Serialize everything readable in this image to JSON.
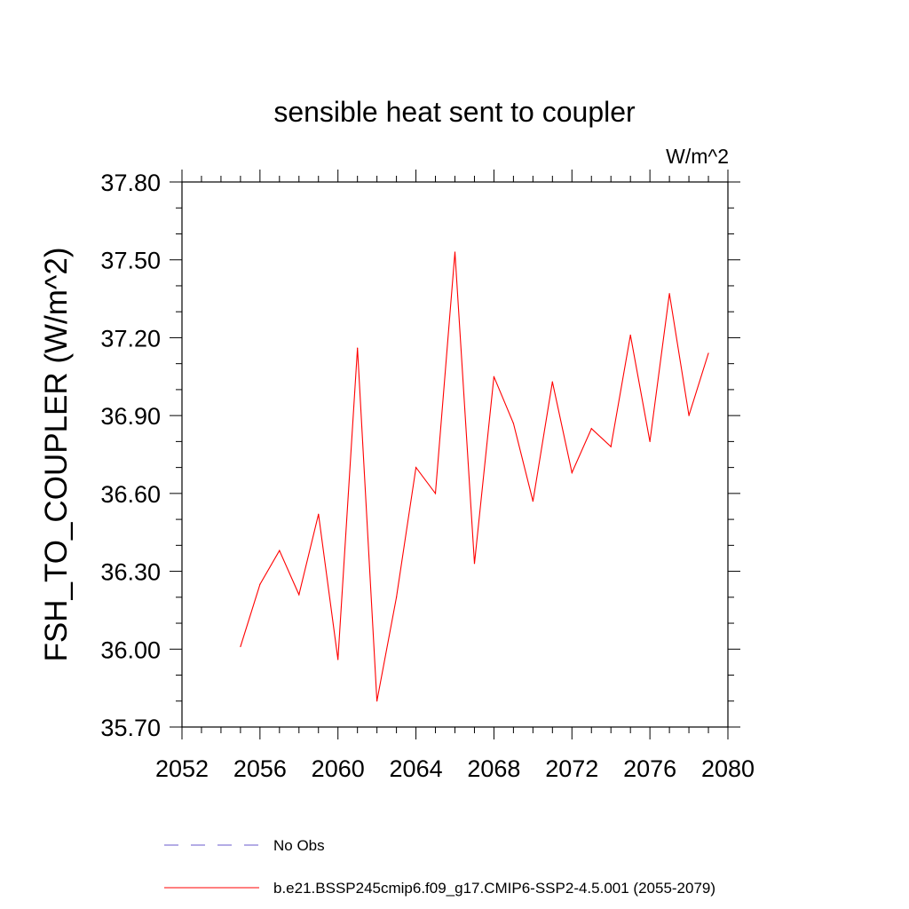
{
  "chart_data": {
    "type": "line",
    "title": "sensible heat sent to coupler",
    "units_label": "W/m^2",
    "xlabel": "",
    "ylabel": "FSH_TO_COUPLER  (W/m^2)",
    "xlim": [
      2052,
      2080
    ],
    "ylim": [
      35.7,
      37.8
    ],
    "xticks": [
      "2052",
      "2056",
      "2060",
      "2064",
      "2068",
      "2072",
      "2076",
      "2080"
    ],
    "yticks": [
      "35.70",
      "36.00",
      "36.30",
      "36.60",
      "36.90",
      "37.20",
      "37.50",
      "37.80"
    ],
    "grid": false,
    "legend_position": "bottom",
    "series": [
      {
        "name": "b.e21.BSSP245cmip6.f09_g17.CMIP6-SSP2-4.5.001 (2055-2079)",
        "color": "#ff0000",
        "dash": "solid",
        "x": [
          2055,
          2056,
          2057,
          2058,
          2059,
          2060,
          2061,
          2062,
          2063,
          2064,
          2065,
          2066,
          2067,
          2068,
          2069,
          2070,
          2071,
          2072,
          2073,
          2074,
          2075,
          2076,
          2077,
          2078,
          2079
        ],
        "y": [
          36.01,
          36.25,
          36.38,
          36.21,
          36.52,
          35.96,
          37.16,
          35.8,
          36.2,
          36.7,
          36.6,
          37.53,
          36.33,
          37.05,
          36.87,
          36.57,
          37.03,
          36.68,
          36.85,
          36.78,
          37.21,
          36.8,
          37.37,
          36.9,
          37.14
        ]
      }
    ],
    "legend": [
      {
        "label": "No Obs",
        "color": "#6a5acd",
        "dash": "dashed"
      },
      {
        "label": "b.e21.BSSP245cmip6.f09_g17.CMIP6-SSP2-4.5.001 (2055-2079)",
        "color": "#ff0000",
        "dash": "solid"
      }
    ]
  }
}
